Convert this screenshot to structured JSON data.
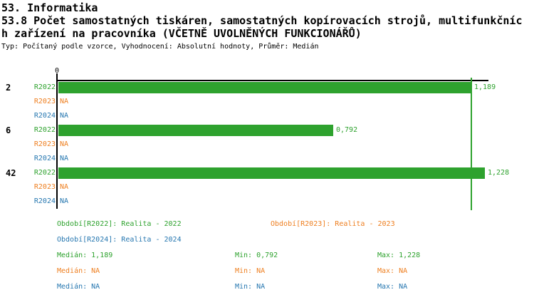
{
  "header": {
    "section_title": "53. Informatika",
    "indicator_title_line1": "53.8 Počet samostatných tiskáren, samostatných kopírovacích strojů, multifunkčníc",
    "indicator_title_line2": "h zařízení na pracovníka (VČETNĚ UVOLNĚNÝCH FUNKCIONÁŘŮ)",
    "meta": "Typ: Počítaný podle vzorce, Vyhodnocení: Absolutní hodnoty, Průměr: Medián"
  },
  "colors": {
    "green": "#2EA22E",
    "orange": "#EE7F20",
    "blue": "#2677B0",
    "axis": "#000000"
  },
  "chart_data": {
    "type": "bar",
    "orientation": "horizontal",
    "axis_tick_label": "0",
    "xlim": [
      0,
      1.24
    ],
    "grid": false,
    "reference_line": {
      "value": 1.189,
      "meaning": "Medián"
    },
    "categories": [
      "2",
      "6",
      "42"
    ],
    "series": [
      {
        "name": "R2022",
        "color_key": "green",
        "values": [
          1.189,
          0.792,
          1.228
        ],
        "displays": [
          "1,189",
          "0,792",
          "1,228"
        ]
      },
      {
        "name": "R2023",
        "color_key": "orange",
        "values": [
          null,
          null,
          null
        ],
        "displays": [
          "NA",
          "NA",
          "NA"
        ]
      },
      {
        "name": "R2024",
        "color_key": "blue",
        "values": [
          null,
          null,
          null
        ],
        "displays": [
          "NA",
          "NA",
          "NA"
        ]
      }
    ],
    "groups": [
      {
        "label": "2",
        "rows": [
          {
            "series": "R2022",
            "color_key": "green",
            "value": 1.189,
            "display": "1,189"
          },
          {
            "series": "R2023",
            "color_key": "orange",
            "value": null,
            "display": "NA"
          },
          {
            "series": "R2024",
            "color_key": "blue",
            "value": null,
            "display": "NA"
          }
        ]
      },
      {
        "label": "6",
        "rows": [
          {
            "series": "R2022",
            "color_key": "green",
            "value": 0.792,
            "display": "0,792"
          },
          {
            "series": "R2023",
            "color_key": "orange",
            "value": null,
            "display": "NA"
          },
          {
            "series": "R2024",
            "color_key": "blue",
            "value": null,
            "display": "NA"
          }
        ]
      },
      {
        "label": "42",
        "rows": [
          {
            "series": "R2022",
            "color_key": "green",
            "value": 1.228,
            "display": "1,228"
          },
          {
            "series": "R2023",
            "color_key": "orange",
            "value": null,
            "display": "NA"
          },
          {
            "series": "R2024",
            "color_key": "blue",
            "value": null,
            "display": "NA"
          }
        ]
      }
    ]
  },
  "legend": {
    "items": [
      {
        "label": "Období[R2022]: Realita - 2022",
        "color_key": "green"
      },
      {
        "label": "Období[R2023]: Realita - 2023",
        "color_key": "orange"
      },
      {
        "label": "Období[R2024]: Realita - 2024",
        "color_key": "blue"
      }
    ],
    "stats": [
      {
        "color_key": "green",
        "median": "Medián: 1,189",
        "min": "Min: 0,792",
        "max": "Max: 1,228"
      },
      {
        "color_key": "orange",
        "median": "Medián: NA",
        "min": "Min: NA",
        "max": "Max: NA"
      },
      {
        "color_key": "blue",
        "median": "Medián: NA",
        "min": "Min: NA",
        "max": "Max: NA"
      }
    ]
  }
}
